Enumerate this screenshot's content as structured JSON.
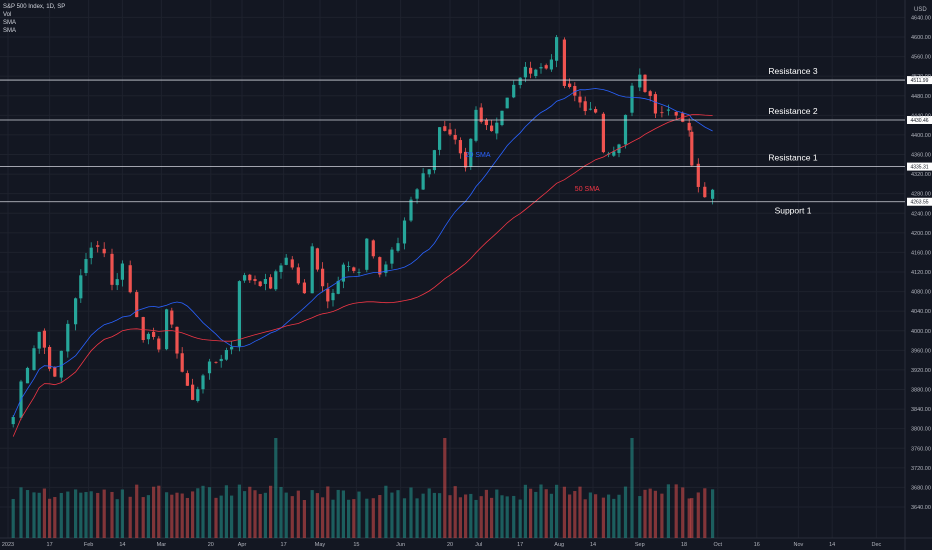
{
  "legend": {
    "title": "S&P 500 Index, 1D, SP",
    "items": [
      "Vol",
      "SMA",
      "SMA"
    ]
  },
  "currency": "USD",
  "colors": {
    "background": "#131722",
    "up": "#26a69a",
    "down": "#ef5350",
    "sma20": "#2962ff",
    "sma50": "#f23645",
    "level": "#d1d4dc"
  },
  "chart_data": {
    "type": "candlestick",
    "y_ticks": [
      4640,
      4600,
      4560,
      4520,
      4480,
      4440,
      4400,
      4360,
      4320,
      4280,
      4240,
      4200,
      4160,
      4120,
      4080,
      4040,
      4000,
      3960,
      3920,
      3880,
      3840,
      3800,
      3760,
      3720,
      3680,
      3640
    ],
    "x_ticks": [
      "2023",
      "17",
      "Feb",
      "14",
      "Mar",
      "20",
      "Apr",
      "17",
      "May",
      "15",
      "Jun",
      "20",
      "Jul",
      "17",
      "Aug",
      "14",
      "Sep",
      "18",
      "Oct",
      "16",
      "Nov",
      "14",
      "Dec"
    ],
    "levels": [
      {
        "name": "Resistance 3",
        "price_tag": "4511.99",
        "value": 4512
      },
      {
        "name": "Resistance 2",
        "price_tag": "4430.46",
        "value": 4430.5
      },
      {
        "name": "Resistance 1",
        "price_tag": "4335.31",
        "value": 4335.3
      },
      {
        "name": "Support 1",
        "price_tag": "4263.55",
        "value": 4263.5
      }
    ],
    "annotations": [
      {
        "text": "20 SMA",
        "date": "2023-06-26",
        "value": 4355
      },
      {
        "text": "50 SMA",
        "date": "2023-08-07",
        "value": 4285
      }
    ],
    "closes": [
      {
        "date": "2023-01-03",
        "close": 3824
      },
      {
        "date": "2023-01-06",
        "close": 3895
      },
      {
        "date": "2023-01-11",
        "close": 3970
      },
      {
        "date": "2023-01-13",
        "close": 3999
      },
      {
        "date": "2023-01-19",
        "close": 3898
      },
      {
        "date": "2023-01-24",
        "close": 4016
      },
      {
        "date": "2023-01-27",
        "close": 4071
      },
      {
        "date": "2023-02-02",
        "close": 4179
      },
      {
        "date": "2023-02-07",
        "close": 4164
      },
      {
        "date": "2023-02-10",
        "close": 4090
      },
      {
        "date": "2023-02-14",
        "close": 4136
      },
      {
        "date": "2023-02-17",
        "close": 4079
      },
      {
        "date": "2023-02-22",
        "close": 3991
      },
      {
        "date": "2023-02-28",
        "close": 3970
      },
      {
        "date": "2023-03-03",
        "close": 4045
      },
      {
        "date": "2023-03-09",
        "close": 3918
      },
      {
        "date": "2023-03-13",
        "close": 3855
      },
      {
        "date": "2023-03-17",
        "close": 3916
      },
      {
        "date": "2023-03-22",
        "close": 3937
      },
      {
        "date": "2023-03-28",
        "close": 3971
      },
      {
        "date": "2023-03-31",
        "close": 4109
      },
      {
        "date": "2023-04-06",
        "close": 4105
      },
      {
        "date": "2023-04-12",
        "close": 4092
      },
      {
        "date": "2023-04-18",
        "close": 4155
      },
      {
        "date": "2023-04-25",
        "close": 4071
      },
      {
        "date": "2023-04-28",
        "close": 4169
      },
      {
        "date": "2023-05-04",
        "close": 4061
      },
      {
        "date": "2023-05-10",
        "close": 4137
      },
      {
        "date": "2023-05-16",
        "close": 4110
      },
      {
        "date": "2023-05-19",
        "close": 4192
      },
      {
        "date": "2023-05-24",
        "close": 4115
      },
      {
        "date": "2023-05-31",
        "close": 4180
      },
      {
        "date": "2023-06-05",
        "close": 4273
      },
      {
        "date": "2023-06-12",
        "close": 4338
      },
      {
        "date": "2023-06-16",
        "close": 4410
      },
      {
        "date": "2023-06-22",
        "close": 4381
      },
      {
        "date": "2023-06-26",
        "close": 4328
      },
      {
        "date": "2023-06-30",
        "close": 4450
      },
      {
        "date": "2023-07-06",
        "close": 4411
      },
      {
        "date": "2023-07-12",
        "close": 4472
      },
      {
        "date": "2023-07-17",
        "close": 4522
      },
      {
        "date": "2023-07-21",
        "close": 4536
      },
      {
        "date": "2023-07-27",
        "close": 4537
      },
      {
        "date": "2023-07-31",
        "close": 4589
      },
      {
        "date": "2023-08-03",
        "close": 4501
      },
      {
        "date": "2023-08-09",
        "close": 4467
      },
      {
        "date": "2023-08-15",
        "close": 4437
      },
      {
        "date": "2023-08-18",
        "close": 4370
      },
      {
        "date": "2023-08-24",
        "close": 4376
      },
      {
        "date": "2023-08-29",
        "close": 4497
      },
      {
        "date": "2023-09-01",
        "close": 4515
      },
      {
        "date": "2023-09-07",
        "close": 4451
      },
      {
        "date": "2023-09-12",
        "close": 4461
      },
      {
        "date": "2023-09-15",
        "close": 4450
      },
      {
        "date": "2023-09-20",
        "close": 4402
      },
      {
        "date": "2023-09-21",
        "close": 4330
      },
      {
        "date": "2023-09-26",
        "close": 4273
      },
      {
        "date": "2023-09-29",
        "close": 4288
      }
    ]
  }
}
